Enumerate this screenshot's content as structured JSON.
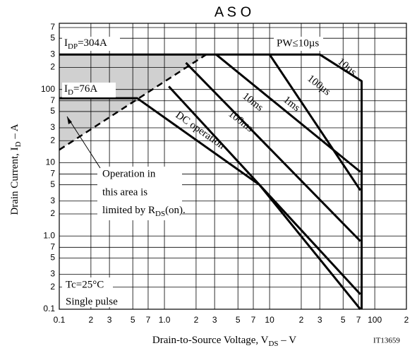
{
  "chart_data": {
    "type": "line",
    "title": "A S O",
    "x_label": [
      "Drain-to-Source Voltage, V",
      "DS",
      "  –  V"
    ],
    "y_label": [
      "Drain Current, I",
      "D",
      "  –  A"
    ],
    "code": "IT13659",
    "log_x": true,
    "log_y": true,
    "grid": true,
    "xlim": [
      0.1,
      200
    ],
    "ylim": [
      0.1,
      800
    ],
    "xticks": [
      0.1,
      {
        "value": 0.2,
        "label": "2"
      },
      {
        "value": 0.3,
        "label": "3"
      },
      {
        "value": 0.5,
        "label": "5"
      },
      {
        "value": 0.7,
        "label": "7"
      },
      {
        "value": 1,
        "label": "1.0"
      },
      2,
      3,
      5,
      7,
      10,
      {
        "value": 20,
        "label": "2"
      },
      {
        "value": 30,
        "label": "3"
      },
      {
        "value": 50,
        "label": "5"
      },
      {
        "value": 70,
        "label": "7"
      },
      100,
      {
        "value": 200,
        "label": "2"
      }
    ],
    "yticks": [
      0.1,
      {
        "value": 0.2,
        "label": "2"
      },
      {
        "value": 0.3,
        "label": "3"
      },
      {
        "value": 0.5,
        "label": "5"
      },
      {
        "value": 0.7,
        "label": "7"
      },
      {
        "value": 1,
        "label": "1.0"
      },
      2,
      3,
      5,
      7,
      10,
      {
        "value": 20,
        "label": "2"
      },
      {
        "value": 30,
        "label": "3"
      },
      {
        "value": 50,
        "label": "5"
      },
      {
        "value": 70,
        "label": "7"
      },
      100,
      {
        "value": 200,
        "label": "2"
      },
      {
        "value": 300,
        "label": "3"
      },
      {
        "value": 500,
        "label": "5"
      },
      {
        "value": 700,
        "label": "7"
      }
    ],
    "series": [
      {
        "name": "10µs",
        "color": "#000",
        "x": [
          0.1,
          30,
          75,
          75
        ],
        "y": [
          300,
          300,
          130,
          0.1
        ]
      },
      {
        "name": "100µs",
        "color": "#000",
        "x": [
          10,
          73
        ],
        "y": [
          300,
          4.2
        ]
      },
      {
        "name": "1ms",
        "color": "#000",
        "x": [
          3.1,
          73
        ],
        "y": [
          300,
          7.5
        ]
      },
      {
        "name": "10ms",
        "color": "#000",
        "x": [
          1.6,
          73
        ],
        "y": [
          231,
          0.85
        ]
      },
      {
        "name": "100ms",
        "color": "#000",
        "x": [
          1.1,
          73
        ],
        "y": [
          110,
          0.16
        ]
      },
      {
        "name": "DC operation",
        "color": "#000",
        "x": [
          0.1,
          0.55,
          8,
          73
        ],
        "y": [
          76,
          76,
          5,
          0.1
        ]
      }
    ],
    "limit_line": {
      "x": [
        0.1,
        2.5
      ],
      "y": [
        15,
        300
      ],
      "dashed": true,
      "fill": "#d0d0d0"
    },
    "annotations": {
      "idp": [
        "I",
        "DP",
        "=304A"
      ],
      "id": [
        "I",
        "D",
        "=76A"
      ],
      "pw": "PW≤10µs",
      "area": [
        "Operation in",
        "this area is",
        "limited by R",
        "DS",
        "(on)."
      ],
      "tc": "Tc=25°C",
      "pulse": "Single pulse"
    }
  }
}
